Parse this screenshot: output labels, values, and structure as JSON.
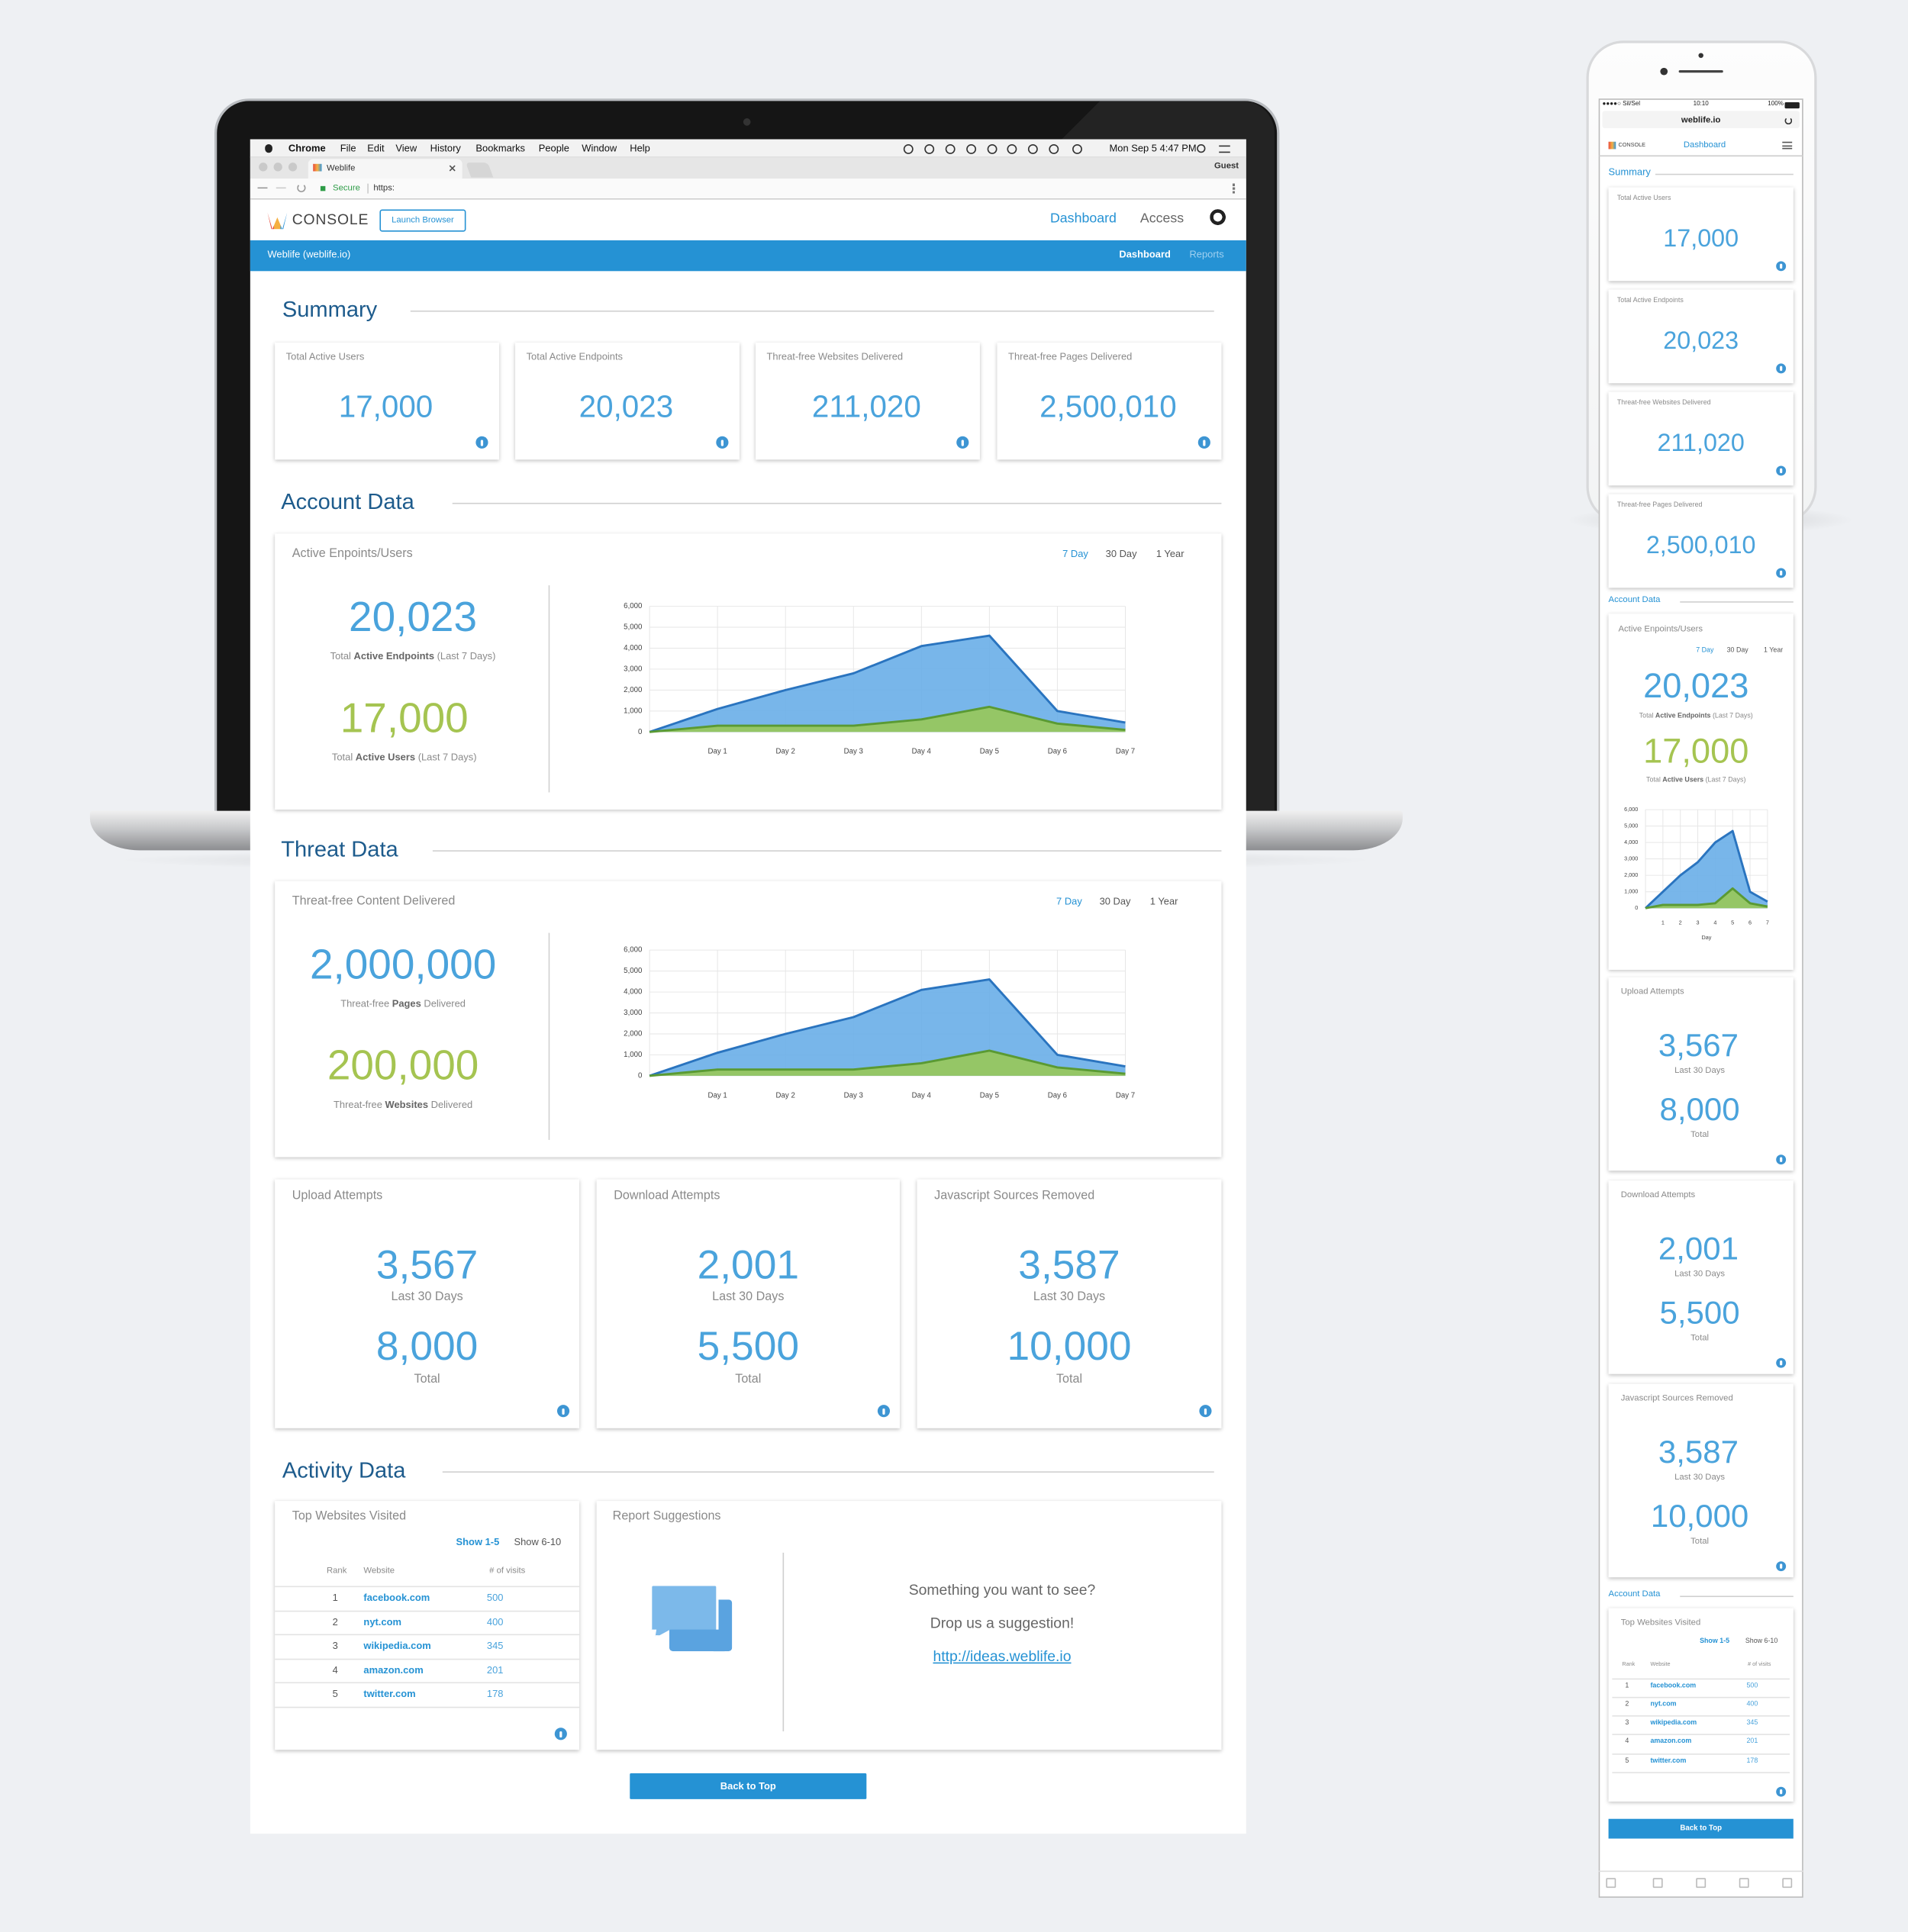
{
  "menu_bar": {
    "app": "Chrome",
    "items": [
      "File",
      "Edit",
      "View",
      "History",
      "Bookmarks",
      "People",
      "Window",
      "Help"
    ],
    "clock": "Mon Sep 5  4:47 PM"
  },
  "browser": {
    "tab": "Weblife",
    "profile": "Guest",
    "secure": "Secure",
    "url": "https:"
  },
  "header": {
    "logo": "CONSOLE",
    "launch": "Launch Browser",
    "nav": [
      "Dashboard",
      "Access"
    ]
  },
  "subheader": {
    "org": "Weblife (weblife.io)",
    "tabs": [
      "Dashboard",
      "Reports"
    ]
  },
  "summary": {
    "title": "Summary",
    "cards": [
      {
        "label": "Total Active Users",
        "value": "17,000"
      },
      {
        "label": "Total Active Endpoints",
        "value": "20,023"
      },
      {
        "label": "Threat-free Websites Delivered",
        "value": "211,020"
      },
      {
        "label": "Threat-free Pages Delivered",
        "value": "2,500,010"
      }
    ]
  },
  "account": {
    "title": "Account Data",
    "card_title": "Active Enpoints/Users",
    "ranges": [
      "7 Day",
      "30 Day",
      "1 Year"
    ],
    "stats": [
      {
        "value": "20,023",
        "prefix": "Total ",
        "bold": "Active Endpoints",
        "suffix": " (Last 7 Days)"
      },
      {
        "value": "17,000",
        "prefix": "Total ",
        "bold": "Active Users",
        "suffix": " (Last 7 Days)"
      }
    ]
  },
  "threat": {
    "title": "Threat Data",
    "card_title": "Threat-free Content Delivered",
    "stats": [
      {
        "value": "2,000,000",
        "prefix": "Threat-free ",
        "bold": "Pages",
        "suffix": " Delivered"
      },
      {
        "value": "200,000",
        "prefix": "Threat-free ",
        "bold": "Websites",
        "suffix": " Delivered"
      }
    ],
    "cards": [
      {
        "title": "Upload Attempts",
        "recent": "3,567",
        "recent_label": "Last 30 Days",
        "total": "8,000",
        "total_label": "Total"
      },
      {
        "title": "Download Attempts",
        "recent": "2,001",
        "recent_label": "Last 30 Days",
        "total": "5,500",
        "total_label": "Total"
      },
      {
        "title": "Javascript Sources Removed",
        "recent": "3,587",
        "recent_label": "Last 30 Days",
        "total": "10,000",
        "total_label": "Total"
      }
    ]
  },
  "activity": {
    "title": "Activity Data",
    "sites": {
      "title": "Top Websites Visited",
      "pager": [
        "Show 1-5",
        "Show 6-10"
      ],
      "columns": [
        "Rank",
        "Website",
        "# of visits"
      ],
      "rows": [
        [
          "1",
          "facebook.com",
          "500"
        ],
        [
          "2",
          "nyt.com",
          "400"
        ],
        [
          "3",
          "wikipedia.com",
          "345"
        ],
        [
          "4",
          "amazon.com",
          "201"
        ],
        [
          "5",
          "twitter.com",
          "178"
        ]
      ]
    },
    "suggest": {
      "title": "Report Suggestions",
      "lines": [
        "Something you want to see?",
        "Drop us a suggestion!"
      ],
      "link": "http://ideas.weblife.io"
    }
  },
  "back_to_top": "Back to Top",
  "phone": {
    "status": {
      "carrier": "●●●●○ Sil/Sel",
      "time": "10:10",
      "battery": "100%"
    },
    "url": "weblife.io"
  },
  "chart_data": [
    {
      "type": "area",
      "categories": [
        null,
        "Day 1",
        "Day 2",
        "Day 3",
        "Day 4",
        "Day 5",
        "Day 6",
        "Day 7"
      ],
      "ylim": [
        0,
        6000
      ],
      "yticks": [
        0,
        {
          "value": 1000,
          "label": "1,000"
        },
        {
          "value": 2000,
          "label": "2,000"
        },
        {
          "value": 3000,
          "label": "3,000"
        },
        {
          "value": 4000,
          "label": "4,000"
        },
        {
          "value": 5000,
          "label": "5,000"
        },
        {
          "value": 6000,
          "label": "6,000"
        }
      ],
      "grid": true,
      "series": [
        {
          "color": "#6cb0e8",
          "line_color": "#2a74bf",
          "values": [
            0,
            1100,
            2000,
            2800,
            4100,
            4600,
            1000,
            450
          ]
        },
        {
          "color": "#98c85a",
          "line_color": "#5a9a33",
          "values": [
            0,
            300,
            300,
            300,
            600,
            1200,
            400,
            100
          ]
        }
      ]
    },
    {
      "type": "area",
      "categories": [
        null,
        "Day 1",
        "Day 2",
        "Day 3",
        "Day 4",
        "Day 5",
        "Day 6",
        "Day 7"
      ],
      "ylim": [
        0,
        6000
      ],
      "yticks": [
        0,
        {
          "value": 1000,
          "label": "1,000"
        },
        {
          "value": 2000,
          "label": "2,000"
        },
        {
          "value": 3000,
          "label": "3,000"
        },
        {
          "value": 4000,
          "label": "4,000"
        },
        {
          "value": 5000,
          "label": "5,000"
        },
        {
          "value": 6000,
          "label": "6,000"
        }
      ],
      "grid": true,
      "series": [
        {
          "color": "#6cb0e8",
          "line_color": "#2a74bf",
          "values": [
            0,
            1100,
            2000,
            2800,
            4100,
            4600,
            1000,
            450
          ]
        },
        {
          "color": "#98c85a",
          "line_color": "#5a9a33",
          "values": [
            0,
            300,
            300,
            300,
            600,
            1200,
            400,
            100
          ]
        }
      ]
    },
    {
      "type": "area",
      "categories": [
        null,
        "1",
        "2",
        "3",
        "4",
        "5",
        "6",
        "7"
      ],
      "x_label": "Day",
      "ylim": [
        0,
        6000
      ],
      "yticks": [
        0,
        {
          "value": 1000,
          "label": "1,000"
        },
        {
          "value": 2000,
          "label": "2,000"
        },
        {
          "value": 3000,
          "label": "3,000"
        },
        {
          "value": 4000,
          "label": "4,000"
        },
        {
          "value": 5000,
          "label": "5,000"
        },
        {
          "value": 6000,
          "label": "6,000"
        }
      ],
      "grid": true,
      "series": [
        {
          "color": "#6cb0e8",
          "line_color": "#2a74bf",
          "values": [
            0,
            1000,
            2000,
            2800,
            4000,
            4700,
            1000,
            400
          ]
        },
        {
          "color": "#98c85a",
          "line_color": "#5a9a33",
          "values": [
            0,
            200,
            200,
            200,
            300,
            1200,
            300,
            100
          ]
        }
      ]
    }
  ]
}
